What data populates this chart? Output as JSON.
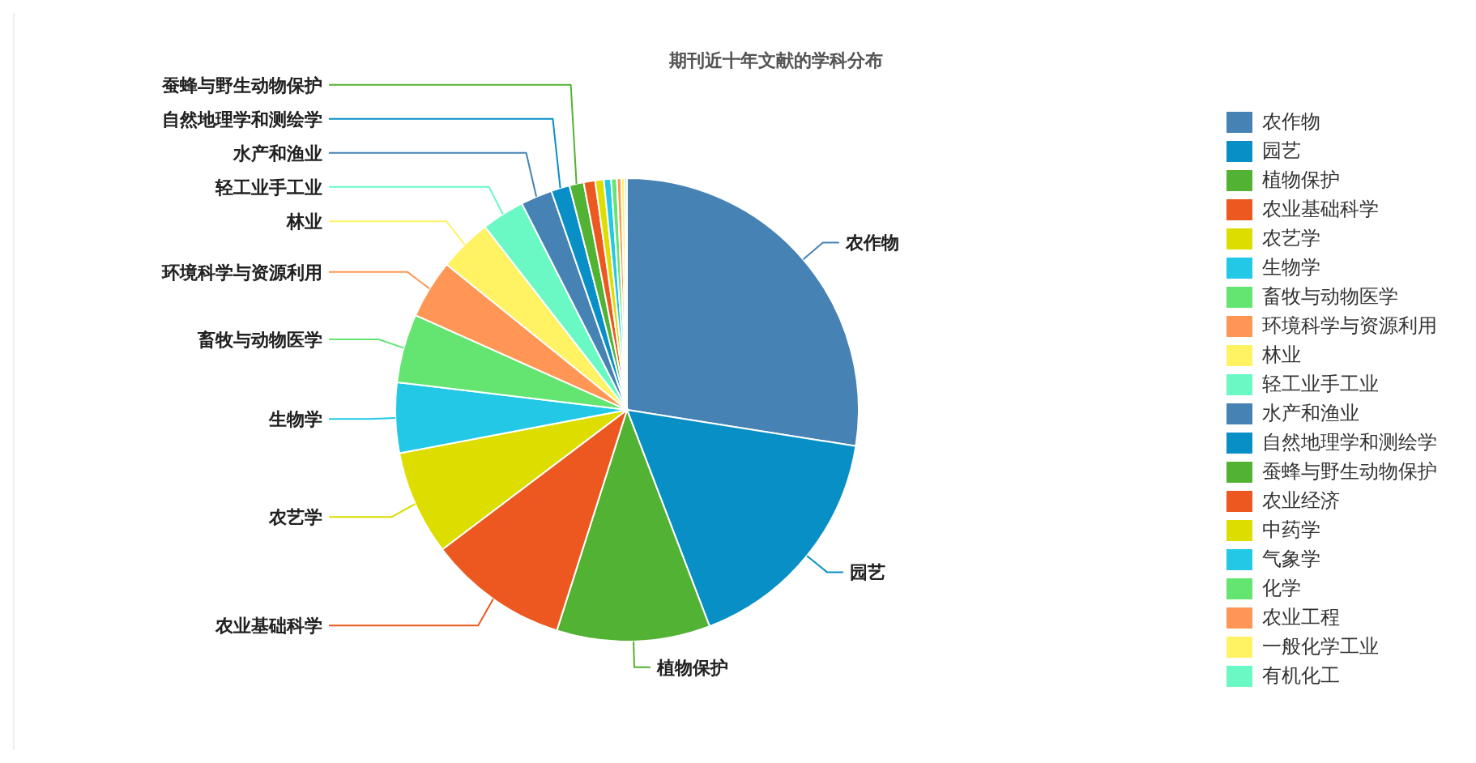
{
  "chart_data": {
    "type": "pie",
    "title": "期刊近十年文献的学科分布",
    "categories": [
      "农作物",
      "园艺",
      "植物保护",
      "农业基础科学",
      "农艺学",
      "生物学",
      "畜牧与动物医学",
      "环境科学与资源利用",
      "林业",
      "轻工业手工业",
      "水产和渔业",
      "自然地理学和测绘学",
      "蚕蜂与野生动物保护",
      "农业经济",
      "中药学",
      "气象学",
      "化学",
      "农业工程",
      "一般化学工业",
      "有机化工"
    ],
    "values": [
      27.5,
      16.7,
      10.7,
      9.8,
      7.3,
      4.9,
      4.8,
      4.1,
      3.7,
      3.0,
      2.2,
      1.3,
      1.0,
      0.8,
      0.6,
      0.5,
      0.4,
      0.3,
      0.25,
      0.15
    ],
    "colors": [
      "#4682b4",
      "#078fc6",
      "#52b233",
      "#ec581f",
      "#dddd00",
      "#22c8e5",
      "#64e572",
      "#ff9655",
      "#fff263",
      "#6af9c4",
      "#4682b4",
      "#078fc6",
      "#52b233",
      "#ec581f",
      "#dddd00",
      "#22c8e5",
      "#64e572",
      "#ff9655",
      "#fff263",
      "#6af9c4"
    ],
    "legend": "right"
  }
}
